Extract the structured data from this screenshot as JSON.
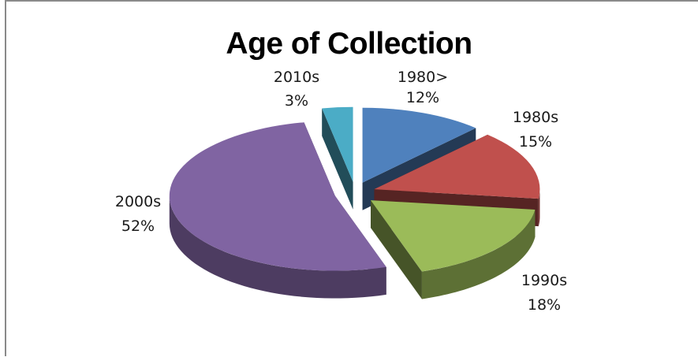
{
  "chart_data": {
    "type": "pie",
    "title": "Age of Collection",
    "categories": [
      "1980>",
      "1980s",
      "1990s",
      "2000s",
      "2010s"
    ],
    "values": [
      12,
      15,
      18,
      52,
      3
    ],
    "value_labels": [
      "12%",
      "15%",
      "18%",
      "52%",
      "3%"
    ],
    "colors": [
      "#4f81bd",
      "#c0504d",
      "#9bbb59",
      "#8064a2",
      "#4bacc6"
    ],
    "exploded": true,
    "three_d": true,
    "legend": "none"
  }
}
